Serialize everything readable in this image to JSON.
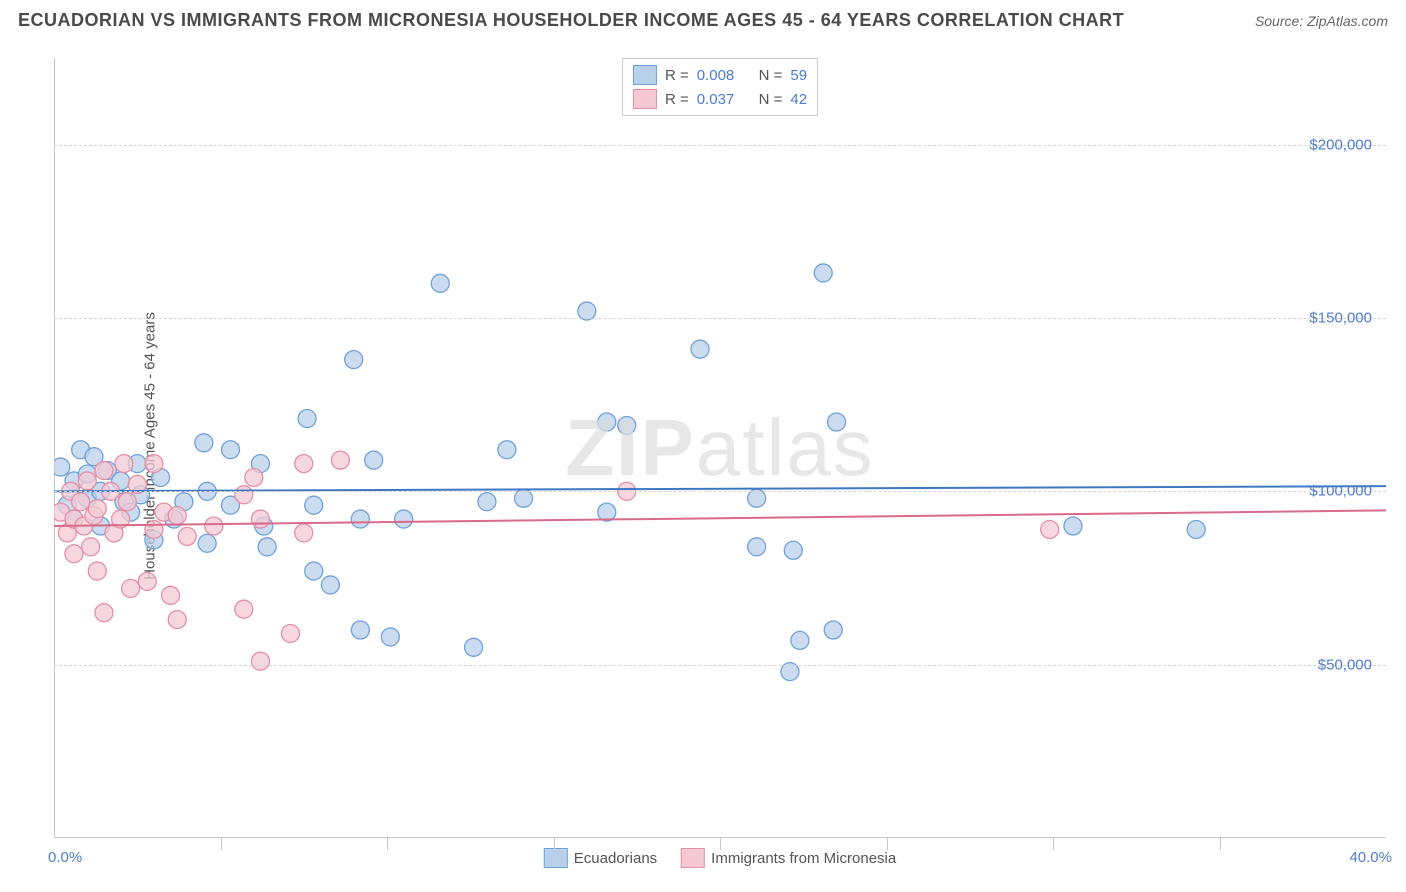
{
  "title": "ECUADORIAN VS IMMIGRANTS FROM MICRONESIA HOUSEHOLDER INCOME AGES 45 - 64 YEARS CORRELATION CHART",
  "source_label": "Source:",
  "source_value": "ZipAtlas.com",
  "watermark_a": "ZIP",
  "watermark_b": "atlas",
  "ylabel": "Householder Income Ages 45 - 64 years",
  "chart": {
    "type": "scatter",
    "xlim": [
      0,
      40
    ],
    "ylim": [
      0,
      225000
    ],
    "xtick_labels": [
      "0.0%",
      "40.0%"
    ],
    "ytick_values": [
      50000,
      100000,
      150000,
      200000
    ],
    "ytick_labels": [
      "$50,000",
      "$100,000",
      "$150,000",
      "$200,000"
    ],
    "background_color": "#ffffff",
    "grid_color": "#d5d5d5",
    "axis_color": "#c8c8c8",
    "marker_radius": 9,
    "marker_stroke_width": 1.3,
    "trend_line_width": 2,
    "series": [
      {
        "name": "Ecuadorians",
        "color_fill": "#b9d0eb",
        "color_stroke": "#6fa2d9",
        "trend_color": "#3f77c2",
        "R": "0.008",
        "N": "59",
        "trend": {
          "y_at_xmin": 100000,
          "y_at_xmax": 101500
        },
        "points": [
          [
            0.2,
            107000
          ],
          [
            0.4,
            96000
          ],
          [
            0.6,
            103000
          ],
          [
            0.6,
            92000
          ],
          [
            0.8,
            112000
          ],
          [
            1.0,
            105000
          ],
          [
            1.0,
            98000
          ],
          [
            1.2,
            110000
          ],
          [
            1.4,
            100000
          ],
          [
            1.4,
            90000
          ],
          [
            1.6,
            106000
          ],
          [
            2.0,
            103000
          ],
          [
            2.1,
            97000
          ],
          [
            2.3,
            94000
          ],
          [
            2.5,
            108000
          ],
          [
            2.6,
            99000
          ],
          [
            3.0,
            86000
          ],
          [
            3.2,
            104000
          ],
          [
            3.6,
            92000
          ],
          [
            3.9,
            97000
          ],
          [
            4.5,
            114000
          ],
          [
            4.6,
            100000
          ],
          [
            4.6,
            85000
          ],
          [
            5.3,
            96000
          ],
          [
            5.3,
            112000
          ],
          [
            6.2,
            108000
          ],
          [
            6.3,
            90000
          ],
          [
            6.4,
            84000
          ],
          [
            7.6,
            121000
          ],
          [
            7.8,
            77000
          ],
          [
            7.8,
            96000
          ],
          [
            8.3,
            73000
          ],
          [
            9.0,
            138000
          ],
          [
            9.2,
            92000
          ],
          [
            9.2,
            60000
          ],
          [
            9.6,
            109000
          ],
          [
            10.1,
            58000
          ],
          [
            10.5,
            92000
          ],
          [
            11.6,
            160000
          ],
          [
            12.6,
            55000
          ],
          [
            13.0,
            97000
          ],
          [
            13.6,
            112000
          ],
          [
            14.1,
            98000
          ],
          [
            16.0,
            152000
          ],
          [
            16.6,
            120000
          ],
          [
            16.6,
            94000
          ],
          [
            17.2,
            119000
          ],
          [
            19.4,
            141000
          ],
          [
            21.1,
            84000
          ],
          [
            21.1,
            98000
          ],
          [
            22.1,
            48000
          ],
          [
            22.2,
            83000
          ],
          [
            22.4,
            57000
          ],
          [
            23.1,
            163000
          ],
          [
            23.4,
            60000
          ],
          [
            23.5,
            120000
          ],
          [
            30.6,
            90000
          ],
          [
            34.3,
            89000
          ]
        ]
      },
      {
        "name": "Immigrants from Micronesia",
        "color_fill": "#f4c9d4",
        "color_stroke": "#e48fa6",
        "trend_color": "#d86b8a",
        "R": "0.037",
        "N": "42",
        "trend": {
          "y_at_xmin": 90000,
          "y_at_xmax": 94500
        },
        "points": [
          [
            0.2,
            94000
          ],
          [
            0.4,
            88000
          ],
          [
            0.5,
            100000
          ],
          [
            0.6,
            92000
          ],
          [
            0.6,
            82000
          ],
          [
            0.8,
            97000
          ],
          [
            0.9,
            90000
          ],
          [
            1.0,
            103000
          ],
          [
            1.1,
            84000
          ],
          [
            1.2,
            93000
          ],
          [
            1.3,
            95000
          ],
          [
            1.3,
            77000
          ],
          [
            1.5,
            106000
          ],
          [
            1.5,
            65000
          ],
          [
            1.7,
            100000
          ],
          [
            1.8,
            88000
          ],
          [
            2.0,
            92000
          ],
          [
            2.1,
            108000
          ],
          [
            2.2,
            97000
          ],
          [
            2.3,
            72000
          ],
          [
            2.5,
            102000
          ],
          [
            2.8,
            74000
          ],
          [
            3.0,
            108000
          ],
          [
            3.0,
            89000
          ],
          [
            3.3,
            94000
          ],
          [
            3.5,
            70000
          ],
          [
            3.7,
            63000
          ],
          [
            3.7,
            93000
          ],
          [
            4.0,
            87000
          ],
          [
            4.8,
            90000
          ],
          [
            5.7,
            66000
          ],
          [
            5.7,
            99000
          ],
          [
            6.0,
            104000
          ],
          [
            6.2,
            92000
          ],
          [
            6.2,
            51000
          ],
          [
            7.1,
            59000
          ],
          [
            7.5,
            108000
          ],
          [
            7.5,
            88000
          ],
          [
            8.6,
            109000
          ],
          [
            17.2,
            100000
          ],
          [
            29.9,
            89000
          ]
        ]
      }
    ]
  },
  "legend_top": {
    "r_prefix": "R =",
    "n_prefix": "N ="
  },
  "legend_bottom": {
    "s1": "Ecuadorians",
    "s2": "Immigrants from Micronesia"
  }
}
